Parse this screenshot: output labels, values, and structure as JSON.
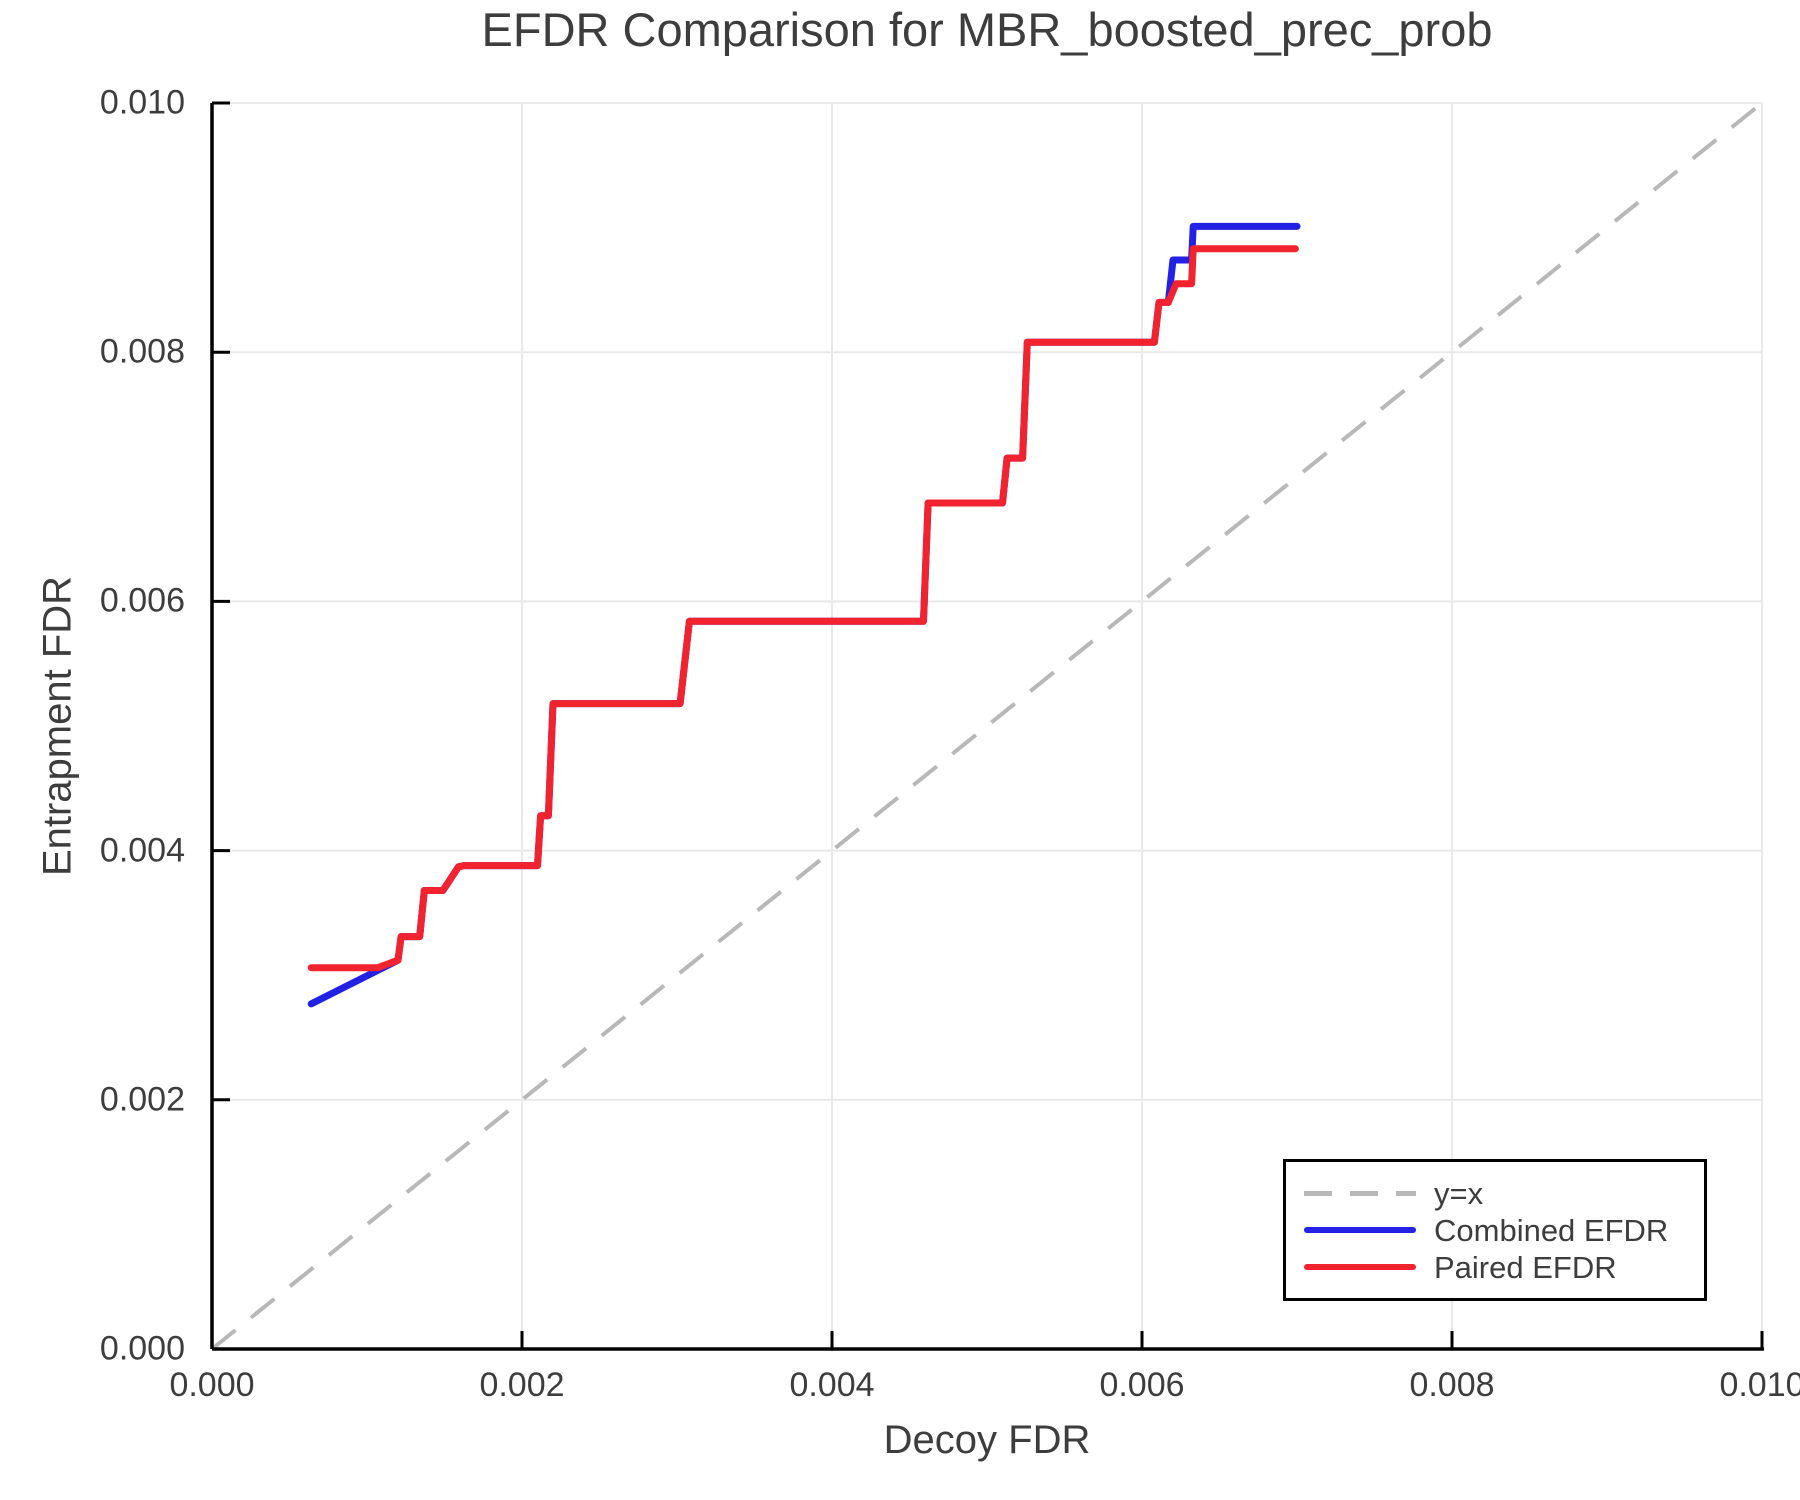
{
  "figure": {
    "title": "EFDR Comparison for MBR_boosted_prec_prob",
    "x_axis_label": "Decoy FDR",
    "y_axis_label": "Entrapment FDR"
  },
  "chart_data": {
    "type": "line",
    "title": "EFDR Comparison for MBR_boosted_prec_prob",
    "xlabel": "Decoy FDR",
    "ylabel": "Entrapment FDR",
    "xlim": [
      0.0,
      0.01
    ],
    "ylim": [
      0.0,
      0.01
    ],
    "xtick_labels": [
      "0.000",
      "0.002",
      "0.004",
      "0.006",
      "0.008",
      "0.010"
    ],
    "ytick_labels": [
      "0.000",
      "0.002",
      "0.004",
      "0.006",
      "0.008",
      "0.010"
    ],
    "grid": true,
    "legend_position": "lower-right",
    "colors": {
      "axis": "#000000",
      "grid": "#e9e9e9",
      "text": "#3d3d3d",
      "identity_line": "#b8b8b8",
      "combined": "#2321e4",
      "paired": "#f1232e"
    },
    "series": [
      {
        "name": "y=x",
        "style": "dashed",
        "color": "#b8b8b8",
        "points": [
          [
            0.0,
            0.0
          ],
          [
            0.01,
            0.01
          ]
        ]
      },
      {
        "name": "Combined EFDR",
        "style": "solid",
        "color": "#2321e4",
        "points": [
          [
            0.00064,
            0.00277
          ],
          [
            0.0012,
            0.00312
          ],
          [
            0.00122,
            0.00331
          ],
          [
            0.00134,
            0.00331
          ],
          [
            0.00137,
            0.00368
          ],
          [
            0.00149,
            0.00368
          ],
          [
            0.00159,
            0.00387
          ],
          [
            0.00163,
            0.00388
          ],
          [
            0.0021,
            0.00388
          ],
          [
            0.00212,
            0.00428
          ],
          [
            0.00217,
            0.00428
          ],
          [
            0.0022,
            0.00518
          ],
          [
            0.00302,
            0.00518
          ],
          [
            0.00308,
            0.00584
          ],
          [
            0.00459,
            0.00584
          ],
          [
            0.00462,
            0.00679
          ],
          [
            0.0051,
            0.00679
          ],
          [
            0.00513,
            0.00715
          ],
          [
            0.00523,
            0.00715
          ],
          [
            0.00526,
            0.00808
          ],
          [
            0.00608,
            0.00808
          ],
          [
            0.00611,
            0.0084
          ],
          [
            0.00617,
            0.0084
          ],
          [
            0.0062,
            0.00874
          ],
          [
            0.00632,
            0.00874
          ],
          [
            0.00633,
            0.00901
          ],
          [
            0.007,
            0.00901
          ]
        ]
      },
      {
        "name": "Paired EFDR",
        "style": "solid",
        "color": "#f1232e",
        "points": [
          [
            0.00064,
            0.00306
          ],
          [
            0.00107,
            0.00306
          ],
          [
            0.0012,
            0.00312
          ],
          [
            0.00122,
            0.00331
          ],
          [
            0.00134,
            0.00331
          ],
          [
            0.00137,
            0.00368
          ],
          [
            0.00149,
            0.00368
          ],
          [
            0.00159,
            0.00387
          ],
          [
            0.00163,
            0.00388
          ],
          [
            0.0021,
            0.00388
          ],
          [
            0.00212,
            0.00428
          ],
          [
            0.00217,
            0.00428
          ],
          [
            0.0022,
            0.00518
          ],
          [
            0.00302,
            0.00518
          ],
          [
            0.00308,
            0.00584
          ],
          [
            0.00459,
            0.00584
          ],
          [
            0.00462,
            0.00679
          ],
          [
            0.0051,
            0.00679
          ],
          [
            0.00513,
            0.00715
          ],
          [
            0.00523,
            0.00715
          ],
          [
            0.00526,
            0.00808
          ],
          [
            0.00608,
            0.00808
          ],
          [
            0.00611,
            0.0084
          ],
          [
            0.00617,
            0.0084
          ],
          [
            0.00622,
            0.00855
          ],
          [
            0.00632,
            0.00855
          ],
          [
            0.00633,
            0.00883
          ],
          [
            0.00699,
            0.00883
          ]
        ]
      }
    ]
  }
}
